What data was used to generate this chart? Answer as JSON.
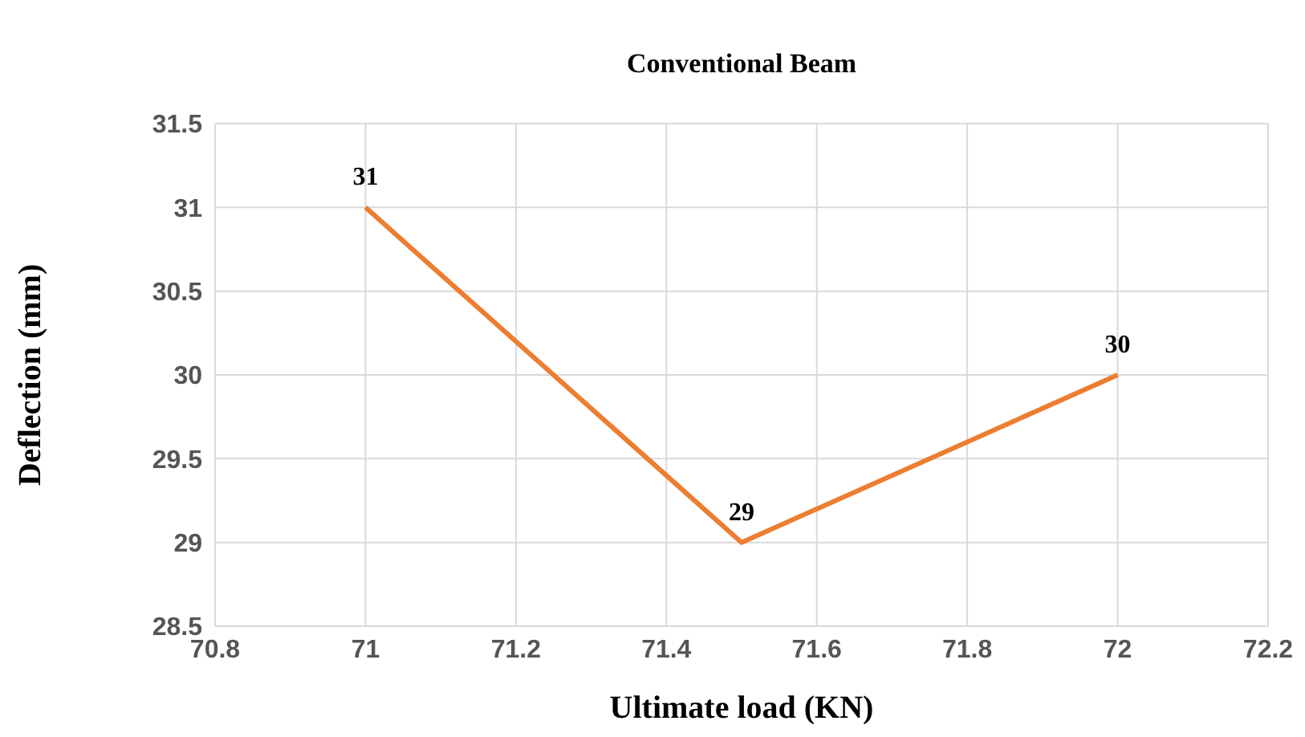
{
  "chart_data": {
    "type": "line",
    "title": "Conventional Beam",
    "xlabel": "Ultimate load (KN)",
    "ylabel": "Deflection (mm)",
    "x": [
      71,
      71.5,
      72
    ],
    "series": [
      {
        "color": "#ed7d31",
        "values": [
          31,
          29,
          30
        ]
      }
    ],
    "xlim": [
      70.8,
      72.2
    ],
    "xticks": [
      70.8,
      71,
      71.2,
      71.4,
      71.6,
      71.8,
      72,
      72.2
    ],
    "ylim": [
      28.5,
      31.5
    ],
    "yticks": [
      28.5,
      29,
      29.5,
      30,
      30.5,
      31,
      31.5
    ],
    "grid": true,
    "data_labels": true,
    "marker": "none",
    "line_style": "solid"
  }
}
